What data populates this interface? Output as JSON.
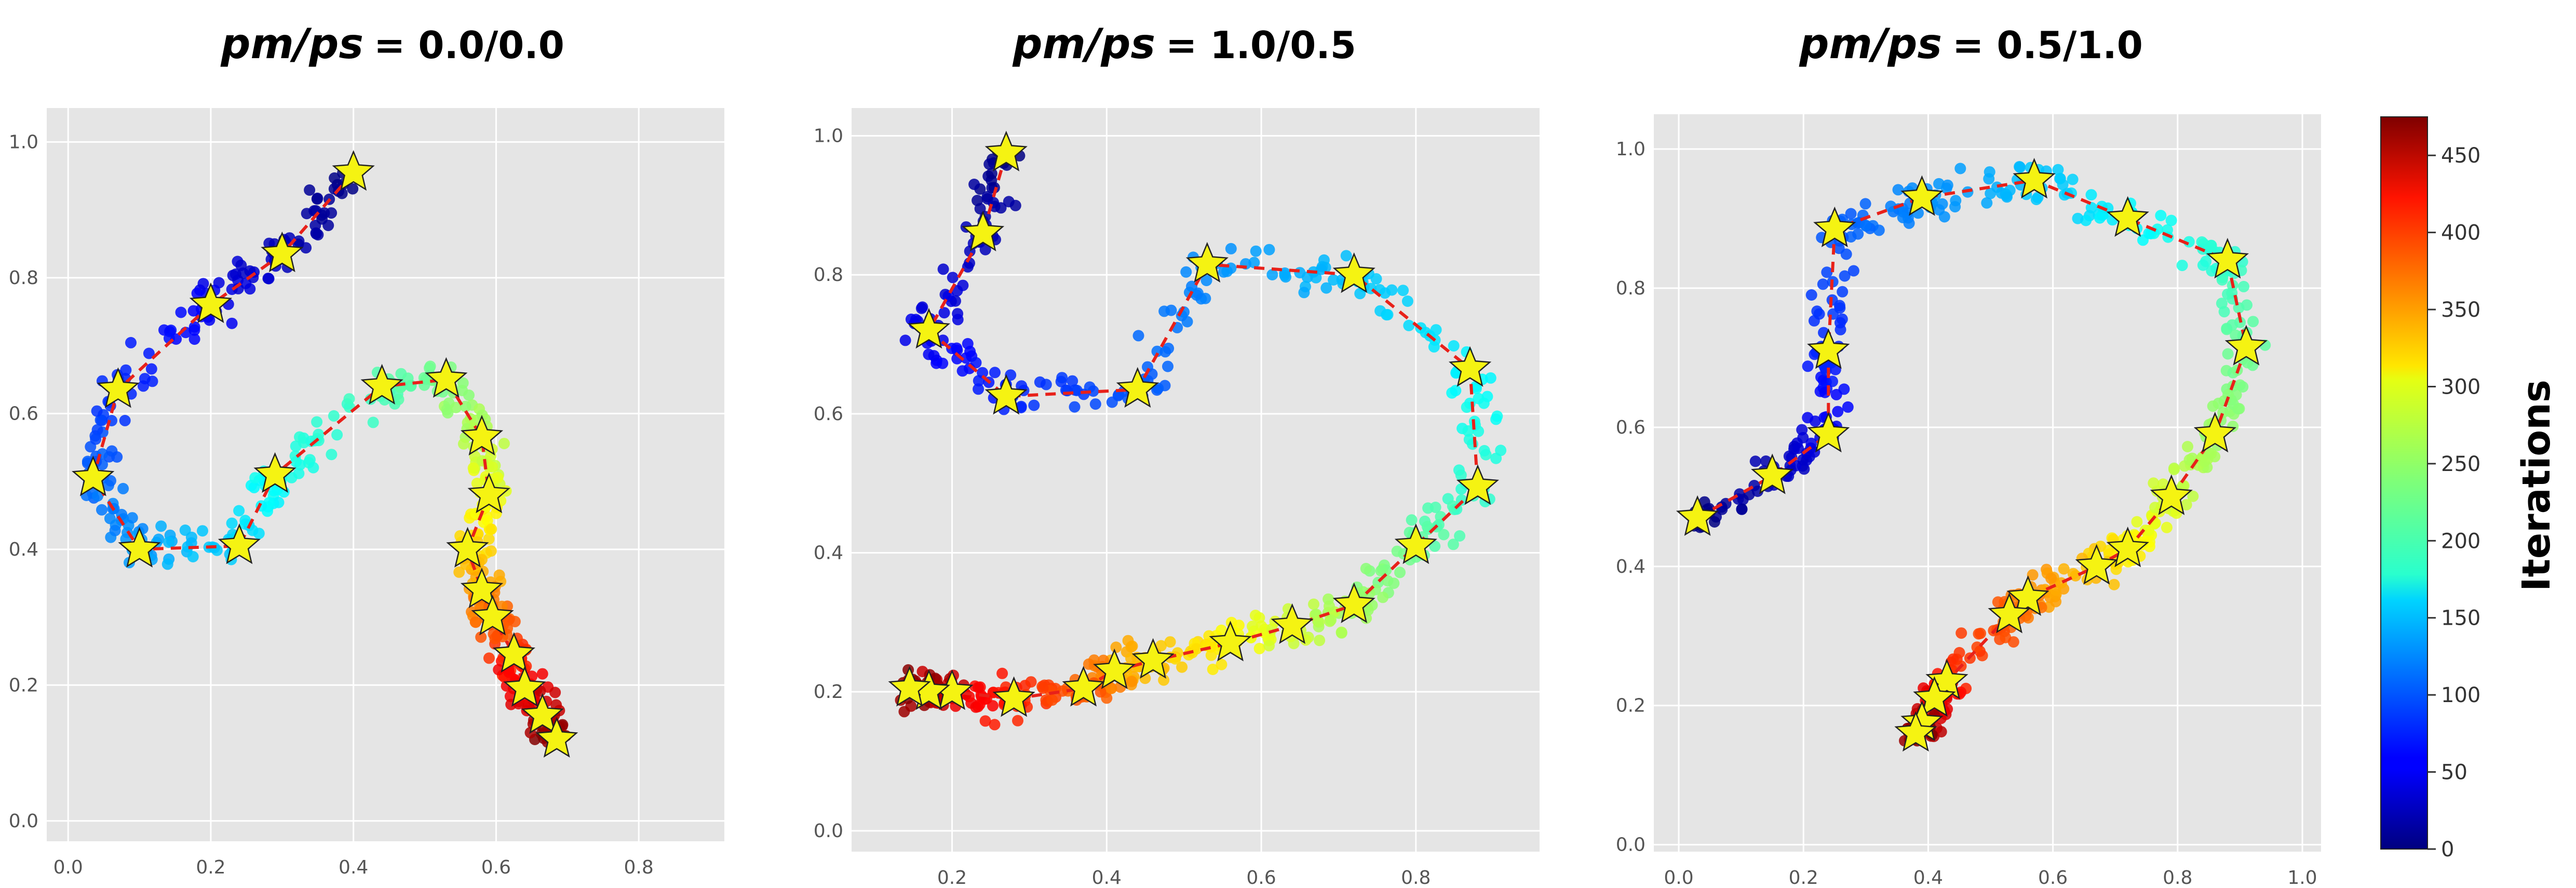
{
  "chart_data": [
    {
      "type": "scatter",
      "title_lhs": "pm/ps",
      "title_value": "= 0.0/0.0",
      "xticks": [
        "0.0",
        "0.2",
        "0.4",
        "0.6",
        "0.8"
      ],
      "yticks": [
        "0.0",
        "0.2",
        "0.4",
        "0.6",
        "0.8",
        "1.0"
      ],
      "xlim": [
        -0.03,
        0.92
      ],
      "ylim": [
        -0.03,
        1.05
      ],
      "grid": true,
      "path": [
        [
          0.4,
          0.955
        ],
        [
          0.3,
          0.835
        ],
        [
          0.2,
          0.76
        ],
        [
          0.07,
          0.635
        ],
        [
          0.035,
          0.505
        ],
        [
          0.1,
          0.4
        ],
        [
          0.24,
          0.405
        ],
        [
          0.29,
          0.51
        ],
        [
          0.44,
          0.64
        ],
        [
          0.53,
          0.65
        ],
        [
          0.58,
          0.565
        ],
        [
          0.59,
          0.48
        ],
        [
          0.56,
          0.4
        ],
        [
          0.58,
          0.34
        ],
        [
          0.595,
          0.3
        ],
        [
          0.625,
          0.245
        ],
        [
          0.64,
          0.195
        ],
        [
          0.665,
          0.155
        ],
        [
          0.685,
          0.12
        ]
      ]
    },
    {
      "type": "scatter",
      "title_lhs": "pm/ps",
      "title_value": "= 1.0/0.5",
      "xticks": [
        "0.2",
        "0.4",
        "0.6",
        "0.8"
      ],
      "yticks": [
        "0.0",
        "0.2",
        "0.4",
        "0.6",
        "0.8",
        "1.0"
      ],
      "xlim": [
        0.07,
        0.96
      ],
      "ylim": [
        -0.03,
        1.04
      ],
      "grid": true,
      "path": [
        [
          0.27,
          0.975
        ],
        [
          0.24,
          0.86
        ],
        [
          0.17,
          0.72
        ],
        [
          0.27,
          0.625
        ],
        [
          0.44,
          0.635
        ],
        [
          0.53,
          0.815
        ],
        [
          0.72,
          0.8
        ],
        [
          0.87,
          0.665
        ],
        [
          0.88,
          0.495
        ],
        [
          0.8,
          0.41
        ],
        [
          0.72,
          0.325
        ],
        [
          0.64,
          0.295
        ],
        [
          0.56,
          0.27
        ],
        [
          0.46,
          0.245
        ],
        [
          0.41,
          0.23
        ],
        [
          0.37,
          0.205
        ],
        [
          0.28,
          0.19
        ],
        [
          0.2,
          0.2
        ],
        [
          0.17,
          0.2
        ],
        [
          0.145,
          0.205
        ]
      ]
    },
    {
      "type": "scatter",
      "title_lhs": "pm/ps",
      "title_value": "= 0.5/1.0",
      "xticks": [
        "0.0",
        "0.2",
        "0.4",
        "0.6",
        "0.8",
        "1.0"
      ],
      "yticks": [
        "0.0",
        "0.2",
        "0.4",
        "0.6",
        "0.8",
        "1.0"
      ],
      "xlim": [
        -0.04,
        1.03
      ],
      "ylim": [
        -0.01,
        1.05
      ],
      "grid": true,
      "path": [
        [
          0.03,
          0.47
        ],
        [
          0.15,
          0.53
        ],
        [
          0.24,
          0.59
        ],
        [
          0.24,
          0.71
        ],
        [
          0.25,
          0.885
        ],
        [
          0.39,
          0.93
        ],
        [
          0.57,
          0.955
        ],
        [
          0.72,
          0.9
        ],
        [
          0.88,
          0.84
        ],
        [
          0.91,
          0.715
        ],
        [
          0.86,
          0.59
        ],
        [
          0.79,
          0.5
        ],
        [
          0.72,
          0.425
        ],
        [
          0.67,
          0.4
        ],
        [
          0.56,
          0.355
        ],
        [
          0.53,
          0.33
        ],
        [
          0.43,
          0.235
        ],
        [
          0.41,
          0.21
        ],
        [
          0.39,
          0.175
        ],
        [
          0.38,
          0.16
        ]
      ]
    }
  ],
  "colorbar": {
    "label": "Iterations",
    "ticks": [
      "0",
      "50",
      "100",
      "150",
      "200",
      "250",
      "300",
      "350",
      "400",
      "450"
    ],
    "max": 475
  },
  "colors": {
    "panel_bg": "#e5e5e5",
    "grid": "#ffffff",
    "path_line": "#e8211a",
    "star_fill": "#f5f312",
    "star_stroke": "#222222"
  }
}
